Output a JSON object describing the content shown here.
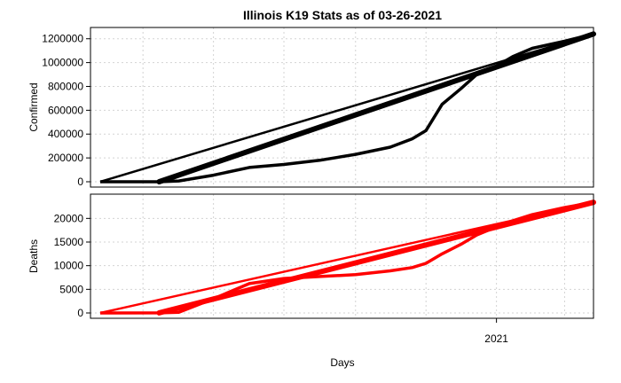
{
  "chart_data": [
    {
      "type": "line",
      "title": "Illinois K19 Stats as of 03-26-2021",
      "xlabel": "",
      "ylabel": "Confirmed",
      "ylim": [
        0,
        1250000
      ],
      "yticks": [
        0,
        200000,
        400000,
        600000,
        800000,
        1000000,
        1200000
      ],
      "grid": true,
      "color": "#000000",
      "x_start": "2020-01-24",
      "x_end": "2021-03-26",
      "xticks": [],
      "series": [
        {
          "name": "",
          "x": [
            "2020-01-24",
            "2020-03-15",
            "2020-04-01",
            "2020-05-01",
            "2020-06-01",
            "2020-07-01",
            "2020-08-01",
            "2020-09-01",
            "2020-10-01",
            "2020-10-20",
            "2020-11-01",
            "2020-11-15",
            "2020-12-01",
            "2020-12-15",
            "2021-01-01",
            "2021-01-15",
            "2021-02-01",
            "2021-03-01",
            "2021-03-26"
          ],
          "y": [
            0,
            100,
            7000,
            55000,
            120000,
            145000,
            180000,
            230000,
            290000,
            360000,
            430000,
            650000,
            780000,
            900000,
            970000,
            1050000,
            1120000,
            1180000,
            1240000
          ]
        }
      ]
    },
    {
      "type": "line",
      "title": "",
      "xlabel": "Days",
      "ylabel": "Deaths",
      "ylim": [
        0,
        24000
      ],
      "yticks": [
        0,
        5000,
        10000,
        15000,
        20000
      ],
      "xticks": [
        "2021"
      ],
      "grid": true,
      "color": "#ff0000",
      "x_start": "2020-01-24",
      "x_end": "2021-03-26",
      "series": [
        {
          "name": "",
          "x": [
            "2020-01-24",
            "2020-03-15",
            "2020-04-01",
            "2020-05-01",
            "2020-06-01",
            "2020-07-01",
            "2020-08-01",
            "2020-09-01",
            "2020-10-01",
            "2020-10-20",
            "2020-11-01",
            "2020-11-15",
            "2020-12-01",
            "2020-12-15",
            "2021-01-01",
            "2021-01-15",
            "2021-02-01",
            "2021-03-01",
            "2021-03-26"
          ],
          "y": [
            0,
            10,
            150,
            3000,
            6200,
            7300,
            7700,
            8100,
            8900,
            9600,
            10500,
            12500,
            14500,
            16500,
            18200,
            19500,
            20800,
            22300,
            23400
          ]
        }
      ]
    }
  ]
}
